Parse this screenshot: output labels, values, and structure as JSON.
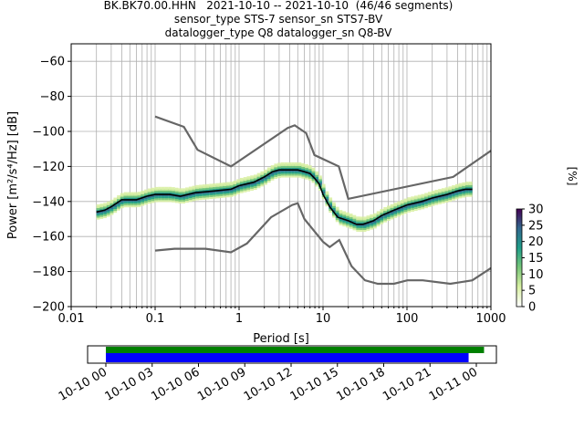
{
  "title_lines": [
    "BK.BK70.00.HHN   2021-10-10 -- 2021-10-10  (46/46 segments)",
    "sensor_type STS-7 sensor_sn STS7-BV",
    "datalogger_type Q8 datalogger_sn Q8-BV"
  ],
  "chart_data": [
    {
      "type": "heatmap",
      "xlabel": "Period [s]",
      "ylabel": "Power [m²/s⁴/Hz] [dB]",
      "xscale": "log",
      "xlim": [
        0.01,
        1000
      ],
      "ylim": [
        -200,
        -50
      ],
      "xticks": [
        0.01,
        0.1,
        1,
        10,
        100,
        1000
      ],
      "xticklabels": [
        "0.01",
        "0.1",
        "1",
        "10",
        "100",
        "1000"
      ],
      "yticks": [
        -60,
        -80,
        -100,
        -120,
        -140,
        -160,
        -180,
        -200
      ],
      "yticklabels": [
        "−60",
        "−80",
        "−100",
        "−120",
        "−140",
        "−160",
        "−180",
        "−200"
      ],
      "grid": true,
      "colorbar": {
        "label": "[%]",
        "range": [
          0,
          30
        ],
        "ticks": [
          0,
          5,
          10,
          15,
          20,
          25,
          30
        ],
        "ticklabels": [
          "0",
          "5",
          "10",
          "15",
          "20",
          "25",
          "30"
        ],
        "colors": [
          "#ffffff",
          "#d9f0a3",
          "#78c679",
          "#1f9e89",
          "#31688e",
          "#440154"
        ]
      },
      "mean_curve": {
        "color": "#000000",
        "x": [
          0.02,
          0.025,
          0.03,
          0.04,
          0.06,
          0.08,
          0.1,
          0.15,
          0.2,
          0.3,
          0.5,
          0.8,
          1,
          1.5,
          2,
          2.5,
          3,
          4,
          5,
          6,
          7,
          8,
          9,
          10,
          12,
          15,
          20,
          25,
          30,
          40,
          50,
          70,
          100,
          150,
          200,
          300,
          400,
          500,
          600
        ],
        "y": [
          -146,
          -145,
          -143,
          -139,
          -139,
          -137,
          -136,
          -136,
          -137,
          -135,
          -134,
          -133,
          -131,
          -129,
          -126,
          -123,
          -122,
          -122,
          -122,
          -123,
          -124,
          -127,
          -130,
          -136,
          -143,
          -149,
          -151,
          -153,
          -153,
          -151,
          -148,
          -145,
          -142,
          -140,
          -138,
          -136,
          -134,
          -133,
          -133
        ]
      },
      "spread_color": "#2a9d80",
      "low_noise_model": {
        "color": "#666666",
        "x": [
          0.1,
          0.17,
          0.4,
          0.8,
          1.24,
          2.4,
          4.3,
          5.0,
          6.0,
          10.0,
          12.0,
          15.6,
          21.9,
          31.6,
          45,
          70,
          101,
          154,
          328,
          600,
          1000
        ],
        "y": [
          -168,
          -167,
          -167,
          -169,
          -164,
          -149,
          -142,
          -141,
          -150,
          -163,
          -166,
          -162,
          -177,
          -185,
          -187,
          -187,
          -185,
          -185,
          -187,
          -185,
          -178
        ]
      },
      "high_noise_model": {
        "color": "#666666",
        "x": [
          0.1,
          0.22,
          0.32,
          0.8,
          3.8,
          4.6,
          6.3,
          7.9,
          15.4,
          20,
          354.8,
          1000
        ],
        "y": [
          -91.5,
          -97.4,
          -110.5,
          -120,
          -98,
          -96.5,
          -101,
          -113.5,
          -120,
          -138.5,
          -126,
          -111
        ]
      }
    },
    {
      "type": "bar",
      "xlim": [
        "10-10 00",
        "10-11 00"
      ],
      "xticklabels": [
        "10-10 00",
        "10-10 03",
        "10-10 06",
        "10-10 09",
        "10-10 12",
        "10-10 15",
        "10-10 18",
        "10-10 21",
        "10-11 00"
      ],
      "series": [
        {
          "start": "10-10 00:00",
          "end": "10-11 00:30",
          "color": "#008000"
        },
        {
          "start": "10-10 00:00",
          "end": "10-10 23:30",
          "color": "#0000ff"
        }
      ]
    }
  ]
}
